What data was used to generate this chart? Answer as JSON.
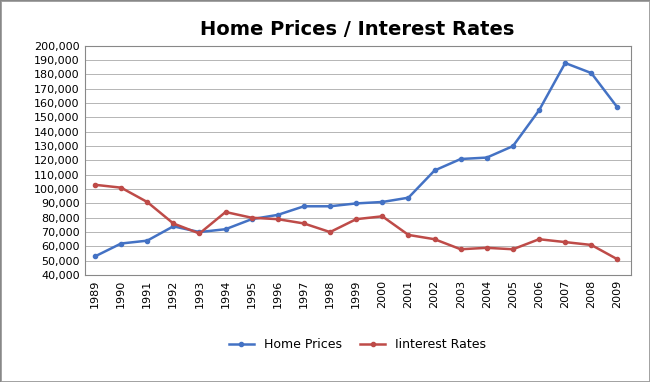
{
  "title": "Home Prices / Interest Rates",
  "years": [
    1989,
    1990,
    1991,
    1992,
    1993,
    1994,
    1995,
    1996,
    1997,
    1998,
    1999,
    2000,
    2001,
    2002,
    2003,
    2004,
    2005,
    2006,
    2007,
    2008,
    2009
  ],
  "home_prices": [
    53000,
    62000,
    64000,
    74000,
    70000,
    72000,
    79000,
    82000,
    88000,
    88000,
    90000,
    91000,
    94000,
    113000,
    121000,
    122000,
    130000,
    155000,
    188000,
    181000,
    157000
  ],
  "interest_rates": [
    103000,
    101000,
    91000,
    76000,
    69000,
    84000,
    80000,
    79000,
    76000,
    70000,
    79000,
    81000,
    68000,
    65000,
    58000,
    59000,
    58000,
    65000,
    63000,
    61000,
    51000
  ],
  "home_prices_color": "#4472C4",
  "interest_rates_color": "#BE4B48",
  "ylim_min": 40000,
  "ylim_max": 200000,
  "ytick_step": 10000,
  "legend_labels": [
    "Home Prices",
    "Iinterest Rates"
  ],
  "background_color": "#FFFFFF",
  "grid_color": "#AAAAAA",
  "title_fontsize": 14,
  "axis_fontsize": 8,
  "legend_fontsize": 9,
  "line_width": 1.8,
  "marker": "o",
  "marker_size": 3,
  "border_color": "#AAAAAA"
}
